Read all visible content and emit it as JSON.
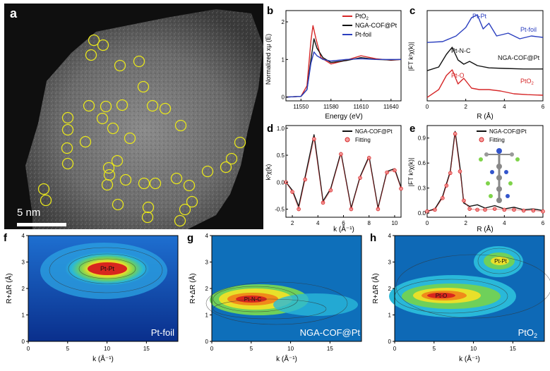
{
  "panels": {
    "a": {
      "label": "a",
      "scale_bar": "5 nm"
    },
    "b": {
      "label": "b",
      "xlabel": "Energy (eV)",
      "ylabel": "Normalized xμ (E)",
      "xticks": [
        "11550",
        "11580",
        "11610",
        "11640"
      ],
      "yticks": [
        "0",
        "1",
        "2"
      ],
      "legend": [
        "PtO2",
        "NGA-COF@Pt",
        "Pt-foil"
      ]
    },
    "c": {
      "label": "c",
      "xlabel": "R (Å)",
      "ylabel": "|FT k²χ(k)|",
      "xticks": [
        "0",
        "2",
        "4",
        "6"
      ],
      "annotations": [
        "Pt-Pt",
        "Pt-foil",
        "Pt-N-C",
        "NGA-COF@Pt",
        "Pt-O",
        "PtO2"
      ]
    },
    "d": {
      "label": "d",
      "xlabel": "k (Å⁻¹)",
      "ylabel": "k²χ(k)",
      "xticks": [
        "2",
        "4",
        "6",
        "8",
        "10"
      ],
      "yticks": [
        "-0.5",
        "0.0",
        "0.5",
        "1.0"
      ],
      "legend": [
        "NGA-COF@Pt",
        "Fitting"
      ]
    },
    "e": {
      "label": "e",
      "xlabel": "R (Å)",
      "ylabel": "|FT k²χ(k)|",
      "xticks": [
        "0",
        "2",
        "4",
        "6"
      ],
      "yticks": [
        "0.0",
        "0.3",
        "0.6",
        "0.9"
      ],
      "legend": [
        "NGA-COF@Pt",
        "Fitting"
      ]
    },
    "f": {
      "label": "f",
      "corner": "Pt-foil",
      "peak": "Pt-Pt"
    },
    "g": {
      "label": "g",
      "corner": "NGA-COF@Pt",
      "peak": "Pt-N-C"
    },
    "h": {
      "label": "h",
      "corner": "PtO2",
      "peak1": "Pt-O",
      "peak2": "Pt-Pt"
    },
    "wt_axes": {
      "xlabel": "k (Å⁻¹)",
      "ylabel": "R+ΔR (Å)",
      "xticks": [
        "0",
        "5",
        "10",
        "15"
      ],
      "yticks": [
        "0",
        "1",
        "2",
        "3",
        "4"
      ]
    }
  },
  "colors": {
    "red": "#d62728",
    "black": "#111111",
    "blue": "#2b3fbf",
    "circle": "#e8e61c"
  },
  "chart_data": [
    {
      "type": "line",
      "title": "",
      "xlabel": "Energy (eV)",
      "ylabel": "Normalized xμ (E)",
      "xlim": [
        11535,
        11650
      ],
      "ylim": [
        -0.1,
        2.3
      ],
      "series": [
        {
          "name": "PtO2",
          "x": [
            11535,
            11550,
            11556,
            11560,
            11562,
            11565,
            11570,
            11580,
            11595,
            11610,
            11625,
            11640,
            11650
          ],
          "values": [
            0.0,
            0.02,
            0.3,
            1.5,
            1.9,
            1.55,
            1.05,
            0.88,
            0.98,
            1.1,
            1.02,
            0.98,
            1.0
          ]
        },
        {
          "name": "NGA-COF@Pt",
          "x": [
            11535,
            11550,
            11556,
            11560,
            11563,
            11566,
            11572,
            11580,
            11595,
            11610,
            11625,
            11640,
            11650
          ],
          "values": [
            0.0,
            0.02,
            0.2,
            1.0,
            1.55,
            1.3,
            1.05,
            0.92,
            0.97,
            1.05,
            1.0,
            0.99,
            1.0
          ]
        },
        {
          "name": "Pt-foil",
          "x": [
            11535,
            11550,
            11556,
            11560,
            11563,
            11566,
            11572,
            11580,
            11595,
            11610,
            11625,
            11640,
            11650
          ],
          "values": [
            0.0,
            0.02,
            0.2,
            0.9,
            1.2,
            1.1,
            1.0,
            0.96,
            1.0,
            1.02,
            1.0,
            1.0,
            1.0
          ]
        }
      ]
    },
    {
      "type": "line",
      "title": "",
      "xlabel": "R (Å)",
      "ylabel": "|FT k²χ(k)|",
      "xlim": [
        0,
        6
      ],
      "series": [
        {
          "name": "Pt-foil",
          "x": [
            0,
            0.8,
            1.5,
            2.0,
            2.3,
            2.6,
            2.9,
            3.2,
            3.6,
            4.2,
            4.8,
            5.4,
            6.0
          ],
          "values": [
            0.02,
            0.05,
            0.25,
            0.55,
            0.9,
            1.0,
            0.5,
            0.7,
            0.25,
            0.35,
            0.15,
            0.25,
            0.2
          ]
        },
        {
          "name": "NGA-COF@Pt",
          "x": [
            0,
            0.6,
            1.0,
            1.3,
            1.6,
            1.9,
            2.2,
            2.6,
            3.2,
            4,
            5,
            6
          ],
          "values": [
            0.02,
            0.15,
            0.6,
            0.85,
            0.4,
            0.25,
            0.35,
            0.2,
            0.12,
            0.1,
            0.08,
            0.08
          ]
        },
        {
          "name": "PtO2",
          "x": [
            0,
            0.6,
            1.0,
            1.3,
            1.6,
            1.9,
            2.3,
            2.7,
            3.2,
            3.8,
            4.5,
            5.2,
            6.0
          ],
          "values": [
            0.02,
            0.3,
            0.8,
            1.0,
            0.5,
            0.7,
            0.35,
            0.3,
            0.3,
            0.25,
            0.15,
            0.12,
            0.1
          ]
        }
      ]
    },
    {
      "type": "line",
      "title": "",
      "xlabel": "k (Å⁻¹)",
      "ylabel": "k²χ(k)",
      "xlim": [
        1.5,
        10.5
      ],
      "ylim": [
        -0.65,
        1.05
      ],
      "series": [
        {
          "name": "NGA-COF@Pt",
          "x": [
            1.5,
            2.0,
            2.5,
            3.0,
            3.7,
            4.4,
            5.0,
            5.8,
            6.6,
            7.3,
            8.0,
            8.7,
            9.4,
            10.0,
            10.5
          ],
          "values": [
            0.0,
            -0.15,
            -0.45,
            0.1,
            0.88,
            -0.35,
            -0.12,
            0.55,
            -0.48,
            0.1,
            0.48,
            -0.48,
            0.2,
            0.25,
            -0.1
          ]
        },
        {
          "name": "Fitting",
          "x": [
            1.5,
            2.0,
            2.5,
            3.0,
            3.7,
            4.4,
            5.0,
            5.8,
            6.6,
            7.3,
            8.0,
            8.7,
            9.4,
            10.0,
            10.5
          ],
          "values": [
            0.0,
            -0.18,
            -0.5,
            0.05,
            0.8,
            -0.38,
            -0.15,
            0.52,
            -0.5,
            0.08,
            0.45,
            -0.5,
            0.18,
            0.22,
            -0.12
          ]
        }
      ]
    },
    {
      "type": "line",
      "title": "",
      "xlabel": "R (Å)",
      "ylabel": "|FT k²χ(k)|",
      "xlim": [
        0,
        6
      ],
      "ylim": [
        -0.05,
        1.05
      ],
      "series": [
        {
          "name": "NGA-COF@Pt",
          "x": [
            0,
            0.4,
            0.8,
            1.0,
            1.2,
            1.45,
            1.7,
            1.9,
            2.2,
            2.6,
            3.0,
            3.5,
            4.0,
            4.5,
            5.0,
            5.5,
            6.0
          ],
          "values": [
            0.02,
            0.05,
            0.2,
            0.35,
            0.5,
            0.98,
            0.55,
            0.12,
            0.08,
            0.1,
            0.06,
            0.09,
            0.05,
            0.07,
            0.04,
            0.05,
            0.03
          ]
        },
        {
          "name": "Fitting",
          "x": [
            0,
            0.4,
            0.8,
            1.0,
            1.2,
            1.45,
            1.7,
            1.9,
            2.2,
            2.6,
            3.0,
            3.5,
            4.0,
            4.5,
            5.0,
            5.5,
            6.0
          ],
          "values": [
            0.02,
            0.04,
            0.18,
            0.33,
            0.48,
            0.95,
            0.5,
            0.15,
            0.05,
            0.04,
            0.04,
            0.05,
            0.04,
            0.04,
            0.03,
            0.03,
            0.02
          ]
        }
      ]
    }
  ],
  "haadf_circles": [
    [
      133,
      57
    ],
    [
      146,
      64
    ],
    [
      129,
      78
    ],
    [
      170,
      93
    ],
    [
      197,
      87
    ],
    [
      203,
      123
    ],
    [
      126,
      150
    ],
    [
      150,
      151
    ],
    [
      173,
      149
    ],
    [
      216,
      150
    ],
    [
      234,
      154
    ],
    [
      145,
      168
    ],
    [
      96,
      167
    ],
    [
      96,
      184
    ],
    [
      160,
      182
    ],
    [
      184,
      196
    ],
    [
      95,
      210
    ],
    [
      121,
      201
    ],
    [
      96,
      232
    ],
    [
      154,
      238
    ],
    [
      166,
      228
    ],
    [
      155,
      248
    ],
    [
      152,
      262
    ],
    [
      178,
      255
    ],
    [
      204,
      260
    ],
    [
      220,
      260
    ],
    [
      250,
      253
    ],
    [
      268,
      263
    ],
    [
      294,
      243
    ],
    [
      320,
      237
    ],
    [
      328,
      225
    ],
    [
      340,
      202
    ],
    [
      256,
      178
    ],
    [
      62,
      268
    ],
    [
      65,
      284
    ],
    [
      167,
      290
    ],
    [
      210,
      294
    ],
    [
      209,
      308
    ],
    [
      262,
      297
    ],
    [
      272,
      286
    ],
    [
      255,
      313
    ]
  ]
}
